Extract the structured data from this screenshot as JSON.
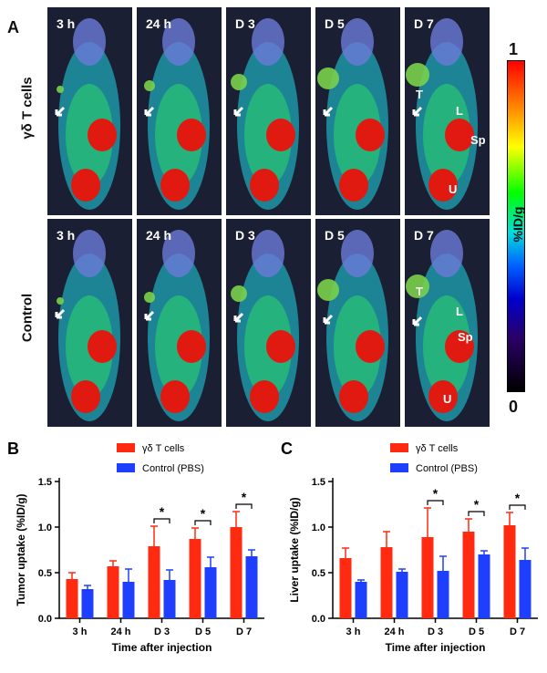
{
  "panel_a": {
    "letter": "A",
    "time_points": [
      "3 h",
      "24 h",
      "D 3",
      "D 5",
      "D 7"
    ],
    "rows": [
      {
        "label": "γδ T cells",
        "organ_labels": {
          "tumor": "T",
          "liver": "L",
          "spleen": "Sp",
          "bladder": "U"
        }
      },
      {
        "label": "Control",
        "organ_labels": {
          "tumor": "T",
          "liver": "L",
          "spleen": "Sp",
          "bladder": "U"
        }
      }
    ],
    "colorbar": {
      "max": "1",
      "min": "0",
      "label": "%ID/g"
    }
  },
  "colors": {
    "gd": "#ff2a10",
    "ctrl": "#1f3fff"
  },
  "chart_data": [
    {
      "panel": "B",
      "type": "bar",
      "categories": [
        "3 h",
        "24 h",
        "D 3",
        "D 5",
        "D 7"
      ],
      "series": [
        {
          "name": "γδ T cells",
          "values": [
            0.43,
            0.57,
            0.79,
            0.87,
            1.0
          ],
          "errors": [
            0.07,
            0.06,
            0.22,
            0.12,
            0.17
          ]
        },
        {
          "name": "Control (PBS)",
          "values": [
            0.32,
            0.4,
            0.42,
            0.56,
            0.68
          ],
          "errors": [
            0.04,
            0.14,
            0.11,
            0.11,
            0.07
          ]
        }
      ],
      "significance": [
        "",
        "",
        "*",
        "*",
        "*"
      ],
      "xlabel": "Time after injection",
      "ylabel": "Tumor uptake (%ID/g)",
      "ylim": [
        0,
        1.5
      ],
      "yticks": [
        "0.0",
        "0.5",
        "1.0",
        "1.5"
      ]
    },
    {
      "panel": "C",
      "type": "bar",
      "categories": [
        "3 h",
        "24 h",
        "D 3",
        "D 5",
        "D 7"
      ],
      "series": [
        {
          "name": "γδ T cells",
          "values": [
            0.66,
            0.78,
            0.89,
            0.95,
            1.02
          ],
          "errors": [
            0.11,
            0.17,
            0.32,
            0.14,
            0.14
          ]
        },
        {
          "name": "Control (PBS)",
          "values": [
            0.4,
            0.51,
            0.52,
            0.7,
            0.64
          ],
          "errors": [
            0.02,
            0.03,
            0.16,
            0.04,
            0.13
          ]
        }
      ],
      "significance": [
        "",
        "",
        "*",
        "*",
        "*"
      ],
      "xlabel": "Time after injection",
      "ylabel": "Liver uptake (%ID/g)",
      "ylim": [
        0,
        1.5
      ],
      "yticks": [
        "0.0",
        "0.5",
        "1.0",
        "1.5"
      ]
    }
  ]
}
